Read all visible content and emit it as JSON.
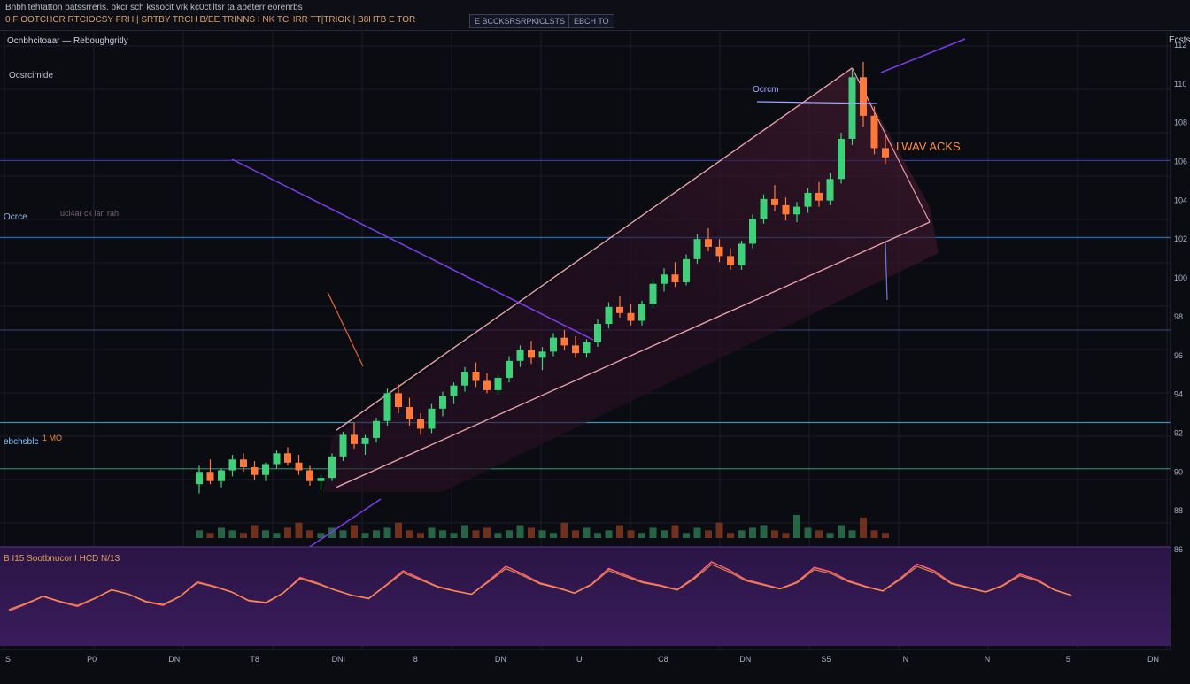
{
  "header": {
    "line1": "Bnbhitehtatton batssrreris. bkcr sch kssocit vrk kc0ctiltsr ta abeterr eorenrbs",
    "line2": "0 F OOTCHCR RTCIOCSY FRH | SRTBY TRCH B/EE TRINNS I NK TCHRR TT|TRIOK | B8HTB E TOR",
    "button_a": "E BCCKSRSRPKICLSTS",
    "button_b": "EBCH TO"
  },
  "chart_data": {
    "type": "candlestick",
    "title": "Ocnbhcitoaar — Reboughgritly",
    "subtitle": "Ocsrcimide",
    "right_label": "Ecsts",
    "annotations": {
      "peak_label": "Ocrcm",
      "breakout_label": "LWAV ACKS",
      "level_labels": [
        "Ocrce",
        "ebchsblc",
        "1 MO"
      ],
      "faint_label": "ucl4ar ck lan rah",
      "indicator_label": "B I15   Sootbnucor  I HCD N/13"
    },
    "levels": [
      {
        "name": "upper",
        "value": 108.0,
        "color": "#3b3fa8"
      },
      {
        "name": "mid",
        "value": 103.0,
        "color": "#2f6fb0"
      },
      {
        "name": "mid2",
        "value": 97.0,
        "color": "#3a3d70"
      },
      {
        "name": "lower",
        "value": 91.0,
        "color": "#4a9fc9"
      },
      {
        "name": "floor",
        "value": 88.0,
        "color": "#2d8a6a"
      }
    ],
    "ohlc": [
      [
        87.0,
        88.2,
        86.4,
        87.8
      ],
      [
        87.8,
        88.6,
        87.0,
        87.2
      ],
      [
        87.2,
        88.0,
        86.8,
        87.9
      ],
      [
        87.9,
        88.9,
        87.5,
        88.6
      ],
      [
        88.6,
        89.0,
        87.8,
        88.1
      ],
      [
        88.1,
        88.5,
        87.3,
        87.6
      ],
      [
        87.6,
        88.4,
        87.2,
        88.3
      ],
      [
        88.3,
        89.2,
        88.0,
        89.0
      ],
      [
        89.0,
        89.4,
        88.2,
        88.4
      ],
      [
        88.4,
        88.9,
        87.6,
        87.9
      ],
      [
        87.9,
        88.2,
        86.9,
        87.2
      ],
      [
        87.2,
        87.6,
        86.6,
        87.4
      ],
      [
        87.4,
        89.0,
        87.2,
        88.8
      ],
      [
        88.8,
        90.4,
        88.5,
        90.2
      ],
      [
        90.2,
        91.0,
        89.3,
        89.6
      ],
      [
        89.6,
        90.2,
        88.9,
        90.0
      ],
      [
        90.0,
        91.3,
        89.7,
        91.1
      ],
      [
        91.1,
        93.2,
        90.8,
        92.9
      ],
      [
        92.9,
        93.5,
        91.6,
        92.0
      ],
      [
        92.0,
        92.6,
        90.8,
        91.2
      ],
      [
        91.2,
        91.6,
        90.2,
        90.6
      ],
      [
        90.6,
        92.2,
        90.3,
        91.9
      ],
      [
        91.9,
        93.0,
        91.4,
        92.7
      ],
      [
        92.7,
        93.6,
        92.2,
        93.4
      ],
      [
        93.4,
        94.6,
        93.0,
        94.3
      ],
      [
        94.3,
        94.9,
        93.3,
        93.7
      ],
      [
        93.7,
        94.2,
        92.9,
        93.1
      ],
      [
        93.1,
        94.1,
        92.8,
        93.9
      ],
      [
        93.9,
        95.3,
        93.6,
        95.0
      ],
      [
        95.0,
        96.0,
        94.6,
        95.7
      ],
      [
        95.7,
        96.3,
        94.8,
        95.2
      ],
      [
        95.2,
        95.9,
        94.4,
        95.6
      ],
      [
        95.6,
        96.8,
        95.3,
        96.5
      ],
      [
        96.5,
        97.0,
        95.7,
        96.0
      ],
      [
        96.0,
        96.6,
        95.2,
        95.5
      ],
      [
        95.5,
        96.4,
        95.2,
        96.2
      ],
      [
        96.2,
        97.7,
        95.9,
        97.4
      ],
      [
        97.4,
        98.8,
        97.1,
        98.5
      ],
      [
        98.5,
        99.2,
        97.8,
        98.1
      ],
      [
        98.1,
        98.7,
        97.3,
        97.6
      ],
      [
        97.6,
        98.9,
        97.3,
        98.7
      ],
      [
        98.7,
        100.3,
        98.4,
        100.0
      ],
      [
        100.0,
        101.0,
        99.5,
        100.6
      ],
      [
        100.6,
        101.4,
        99.8,
        100.1
      ],
      [
        100.1,
        101.9,
        99.9,
        101.6
      ],
      [
        101.6,
        103.2,
        101.3,
        102.9
      ],
      [
        102.9,
        103.6,
        102.1,
        102.4
      ],
      [
        102.4,
        102.9,
        101.4,
        101.8
      ],
      [
        101.8,
        102.3,
        100.9,
        101.2
      ],
      [
        101.2,
        102.8,
        100.9,
        102.6
      ],
      [
        102.6,
        104.5,
        102.3,
        104.2
      ],
      [
        104.2,
        105.8,
        103.9,
        105.5
      ],
      [
        105.5,
        106.4,
        104.7,
        105.1
      ],
      [
        105.1,
        105.6,
        104.1,
        104.5
      ],
      [
        104.5,
        105.3,
        104.0,
        105.0
      ],
      [
        105.0,
        106.2,
        104.6,
        105.9
      ],
      [
        105.9,
        106.6,
        105.0,
        105.4
      ],
      [
        105.4,
        107.2,
        105.1,
        106.8
      ],
      [
        106.8,
        109.8,
        106.5,
        109.4
      ],
      [
        109.4,
        113.9,
        109.0,
        113.4
      ],
      [
        113.4,
        114.4,
        110.2,
        110.9
      ],
      [
        110.9,
        111.5,
        108.4,
        108.8
      ],
      [
        108.8,
        109.6,
        107.8,
        108.2
      ]
    ],
    "volume": [
      3,
      2,
      4,
      3,
      2,
      5,
      3,
      2,
      4,
      6,
      3,
      2,
      4,
      3,
      5,
      2,
      3,
      4,
      6,
      3,
      2,
      4,
      3,
      2,
      5,
      3,
      4,
      2,
      3,
      5,
      4,
      3,
      2,
      6,
      3,
      4,
      2,
      3,
      5,
      3,
      2,
      4,
      3,
      5,
      2,
      4,
      3,
      6,
      2,
      3,
      4,
      5,
      3,
      2,
      9,
      4,
      3,
      2,
      5,
      3,
      8,
      3,
      2
    ],
    "oscillator": [
      22,
      28,
      35,
      30,
      26,
      33,
      41,
      37,
      30,
      27,
      35,
      48,
      44,
      39,
      31,
      29,
      38,
      52,
      47,
      41,
      36,
      33,
      45,
      58,
      51,
      44,
      40,
      37,
      49,
      62,
      55,
      47,
      43,
      38,
      46,
      60,
      54,
      48,
      45,
      41,
      52,
      66,
      59,
      50,
      46,
      42,
      48,
      61,
      57,
      49,
      44,
      40,
      51,
      64,
      58,
      47,
      43,
      39,
      45,
      55,
      50,
      41,
      36
    ],
    "x_ticks": [
      "S",
      "P0",
      "DN",
      "T8",
      "DNI",
      "8",
      "DN",
      "U",
      "C8",
      "DN",
      "S5",
      "N",
      "N",
      "5",
      "DN"
    ],
    "y_ticks": [
      "112",
      "110",
      "108",
      "106",
      "104",
      "102",
      "100",
      "98",
      "96",
      "94",
      "92",
      "90",
      "88",
      "86"
    ],
    "ylim": [
      85,
      116
    ],
    "colors": {
      "up": "#3fd17a",
      "down": "#ff7a3a",
      "channel": "#e7a0a8",
      "accent": "#7c3aed",
      "band": "#3a1530"
    }
  }
}
